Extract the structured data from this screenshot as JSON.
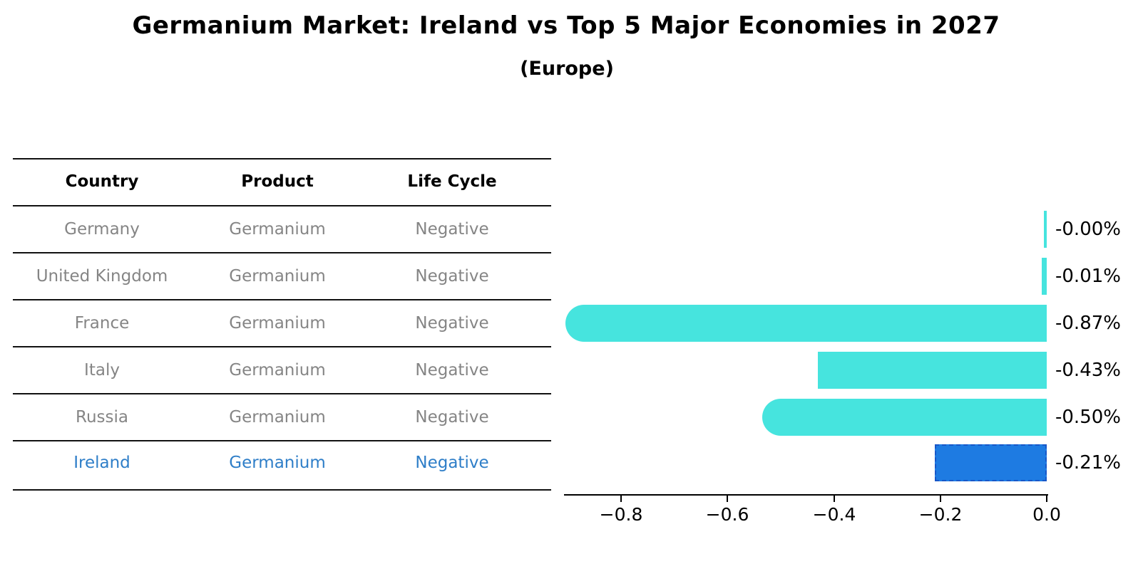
{
  "header": {
    "title": "Germanium Market: Ireland vs Top 5 Major Economies in 2027",
    "subtitle": "(Europe)"
  },
  "table": {
    "columns": [
      "Country",
      "Product",
      "Life Cycle"
    ],
    "rows": [
      {
        "country": "Germany",
        "product": "Germanium",
        "life_cycle": "Negative",
        "highlight": false
      },
      {
        "country": "United Kingdom",
        "product": "Germanium",
        "life_cycle": "Negative",
        "highlight": false
      },
      {
        "country": "France",
        "product": "Germanium",
        "life_cycle": "Negative",
        "highlight": false
      },
      {
        "country": "Italy",
        "product": "Germanium",
        "life_cycle": "Negative",
        "highlight": false
      },
      {
        "country": "Russia",
        "product": "Germanium",
        "life_cycle": "Negative",
        "highlight": false
      },
      {
        "country": "Ireland",
        "product": "Germanium",
        "life_cycle": "Negative",
        "highlight": true
      }
    ],
    "text_color": "#858585",
    "highlight_text_color": "#2E7EC8"
  },
  "chart_data": {
    "type": "bar",
    "orientation": "horizontal",
    "title": "Germanium Market: Ireland vs Top 5 Major Economies in 2027",
    "subtitle": "(Europe)",
    "categories": [
      "Germany",
      "United Kingdom",
      "France",
      "Italy",
      "Russia",
      "Ireland"
    ],
    "values": [
      -0.0,
      -0.01,
      -0.87,
      -0.43,
      -0.5,
      -0.21
    ],
    "value_labels": [
      "-0.00%",
      "-0.01%",
      "-0.87%",
      "-0.43%",
      "-0.50%",
      "-0.21%"
    ],
    "unit": "%",
    "xlabel": "",
    "ylabel": "",
    "xlim": [
      -0.92,
      0.0
    ],
    "x_tick_values": [
      -0.8,
      -0.6,
      -0.4,
      -0.2,
      0.0
    ],
    "x_tick_labels": [
      "−0.8",
      "−0.6",
      "−0.4",
      "−0.2",
      "0.0"
    ],
    "grid": "off",
    "legend": "none",
    "bar_color": "#46E4DE",
    "highlight_index": 5,
    "highlight_color": "#1E7BE2",
    "highlight_border_color": "#1857C8"
  }
}
